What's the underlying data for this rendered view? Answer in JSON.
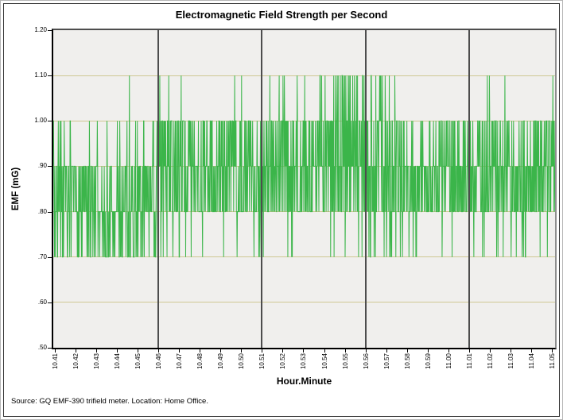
{
  "title": "Electromagnetic Field Strength per Second",
  "axes": {
    "x_label": "Hour.Minute",
    "y_label": "EMF (mG)"
  },
  "source_note": "Source: GQ EMF-390 trifield meter. Location: Home Office.",
  "chart_data": {
    "type": "line",
    "title": "Electromagnetic Field Strength per Second",
    "xlabel": "Hour.Minute",
    "ylabel": "EMF (mG)",
    "ylim": [
      0.5,
      1.2
    ],
    "value_step": 0.1,
    "grid": "horizontal tan lines each 0.10; dark vertical lines every 5 minutes",
    "legend": "none",
    "line_color": "#3bb54a",
    "gridline_color": "#cfc893",
    "major_gridline_color": "#4d4d4d",
    "plot_bg": "#f0efed",
    "y_ticks": [
      {
        "label": "1.20",
        "value": 1.2
      },
      {
        "label": "1.10",
        "value": 1.1
      },
      {
        "label": "1.00",
        "value": 1.0
      },
      {
        "label": ".90",
        "value": 0.9
      },
      {
        "label": ".80",
        "value": 0.8
      },
      {
        "label": ".70",
        "value": 0.7
      },
      {
        "label": ".60",
        "value": 0.6
      },
      {
        "label": ".50",
        "value": 0.5
      }
    ],
    "x_ticks": [
      "10.41",
      "10.42",
      "10.43",
      "10.44",
      "10.45",
      "10.46",
      "10.47",
      "10.48",
      "10.49",
      "10.50",
      "10.51",
      "10.52",
      "10.53",
      "10.54",
      "10.55",
      "10.56",
      "10.57",
      "10.58",
      "10.59",
      "11.00",
      "11.01",
      "11.02",
      "11.03",
      "11.04",
      "11.05"
    ],
    "x_major_gridlines": [
      "10.46",
      "10.51",
      "10.56",
      "11.01"
    ],
    "samples_per_minute": 60,
    "render_seed": 7,
    "segments": [
      {
        "minute": "10.41",
        "levels": [
          0.7,
          0.8,
          0.9
        ],
        "extras": [
          [
            1.0,
            0.1
          ]
        ]
      },
      {
        "minute": "10.42",
        "levels": [
          0.7,
          0.8,
          0.9
        ],
        "extras": [
          [
            1.0,
            0.08
          ]
        ]
      },
      {
        "minute": "10.43",
        "levels": [
          0.7,
          0.8,
          0.8,
          0.9
        ],
        "extras": [
          [
            1.0,
            0.05
          ]
        ]
      },
      {
        "minute": "10.44",
        "levels": [
          0.7,
          0.8,
          0.9
        ],
        "extras": [
          [
            1.0,
            0.08
          ],
          [
            1.1,
            0.02
          ]
        ]
      },
      {
        "minute": "10.45",
        "levels": [
          0.7,
          0.8,
          0.9
        ],
        "extras": [
          [
            1.0,
            0.1
          ],
          [
            1.1,
            0.02
          ]
        ]
      },
      {
        "minute": "10.46",
        "levels": [
          0.8,
          0.9,
          1.0
        ],
        "extras": [
          [
            0.7,
            0.08
          ],
          [
            1.1,
            0.02
          ]
        ]
      },
      {
        "minute": "10.47",
        "levels": [
          0.8,
          0.9,
          1.0
        ],
        "extras": [
          [
            0.7,
            0.06
          ],
          [
            1.1,
            0.02
          ]
        ]
      },
      {
        "minute": "10.48",
        "levels": [
          0.8,
          0.8,
          0.9,
          1.0
        ],
        "extras": [
          [
            0.7,
            0.05
          ]
        ]
      },
      {
        "minute": "10.49",
        "levels": [
          0.8,
          0.9,
          1.0
        ],
        "extras": [
          [
            0.7,
            0.06
          ],
          [
            1.1,
            0.03
          ]
        ]
      },
      {
        "minute": "10.50",
        "levels": [
          0.8,
          0.9,
          1.0
        ],
        "extras": [
          [
            0.7,
            0.08
          ],
          [
            1.1,
            0.03
          ]
        ]
      },
      {
        "minute": "10.51",
        "levels": [
          0.8,
          0.9,
          1.0
        ],
        "extras": [
          [
            0.7,
            0.05
          ],
          [
            1.1,
            0.05
          ]
        ]
      },
      {
        "minute": "10.52",
        "levels": [
          0.8,
          0.9,
          1.0
        ],
        "extras": [
          [
            0.7,
            0.04
          ],
          [
            1.1,
            0.08
          ]
        ]
      },
      {
        "minute": "10.53",
        "levels": [
          0.8,
          0.9,
          1.0
        ],
        "extras": [
          [
            0.7,
            0.03
          ],
          [
            1.1,
            0.1
          ]
        ]
      },
      {
        "minute": "10.54",
        "levels": [
          0.8,
          0.9,
          1.0
        ],
        "extras": [
          [
            0.7,
            0.03
          ],
          [
            1.1,
            0.12
          ]
        ]
      },
      {
        "minute": "10.55",
        "levels": [
          0.8,
          0.9,
          1.0
        ],
        "extras": [
          [
            0.7,
            0.04
          ],
          [
            1.1,
            0.1
          ]
        ]
      },
      {
        "minute": "10.56",
        "levels": [
          0.8,
          0.9,
          1.0
        ],
        "extras": [
          [
            0.7,
            0.08
          ],
          [
            1.1,
            0.12
          ]
        ]
      },
      {
        "minute": "10.57",
        "levels": [
          0.8,
          0.9,
          1.0
        ],
        "extras": [
          [
            0.7,
            0.1
          ],
          [
            1.1,
            0.04
          ]
        ]
      },
      {
        "minute": "10.58",
        "levels": [
          0.8,
          0.9
        ],
        "extras": [
          [
            1.0,
            0.2
          ],
          [
            0.7,
            0.05
          ]
        ]
      },
      {
        "minute": "10.59",
        "levels": [
          0.8,
          0.9
        ],
        "extras": [
          [
            1.0,
            0.2
          ],
          [
            0.7,
            0.06
          ]
        ]
      },
      {
        "minute": "11.00",
        "levels": [
          0.8,
          0.9
        ],
        "extras": [
          [
            1.0,
            0.15
          ],
          [
            0.7,
            0.05
          ]
        ]
      },
      {
        "minute": "11.01",
        "levels": [
          0.8,
          0.9
        ],
        "extras": [
          [
            1.0,
            0.2
          ],
          [
            0.7,
            0.04
          ],
          [
            1.1,
            0.02
          ]
        ]
      },
      {
        "minute": "11.02",
        "levels": [
          0.8,
          0.9
        ],
        "extras": [
          [
            1.0,
            0.25
          ],
          [
            0.7,
            0.05
          ],
          [
            1.1,
            0.02
          ]
        ]
      },
      {
        "minute": "11.03",
        "levels": [
          0.8,
          0.9
        ],
        "extras": [
          [
            1.0,
            0.2
          ],
          [
            0.7,
            0.06
          ]
        ]
      },
      {
        "minute": "11.04",
        "levels": [
          0.8,
          0.9
        ],
        "extras": [
          [
            1.0,
            0.25
          ],
          [
            0.7,
            0.04
          ],
          [
            1.1,
            0.04
          ]
        ]
      },
      {
        "minute": "11.05",
        "levels": [
          0.8,
          0.9,
          1.0
        ],
        "extras": [
          [
            1.1,
            0.25
          ],
          [
            0.7,
            0.03
          ]
        ]
      }
    ]
  }
}
